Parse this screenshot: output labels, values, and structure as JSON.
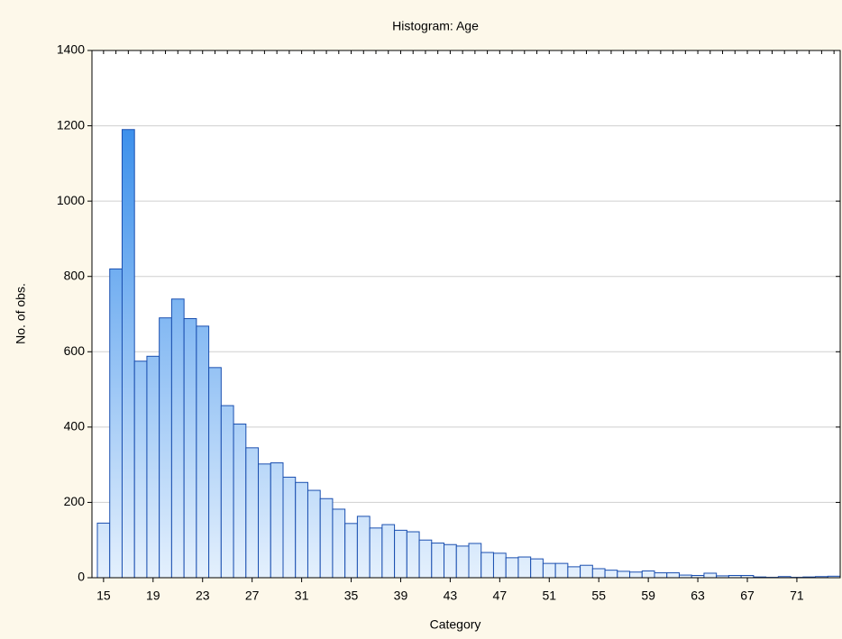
{
  "chart_data": {
    "type": "bar",
    "title": "Histogram: Age",
    "x_label": "Category",
    "y_label": "No. of obs.",
    "categories": [
      "15",
      null,
      null,
      null,
      "19",
      null,
      null,
      null,
      "23",
      null,
      null,
      null,
      "27",
      null,
      null,
      null,
      "31",
      null,
      null,
      null,
      "35",
      null,
      null,
      null,
      "39",
      null,
      null,
      null,
      "43",
      null,
      null,
      null,
      "47",
      null,
      null,
      null,
      "51",
      null,
      null,
      null,
      "55",
      null,
      null,
      null,
      "59",
      null,
      null,
      null,
      "63",
      null,
      null,
      null,
      "67",
      null,
      null,
      null,
      "71",
      null,
      null,
      null
    ],
    "values": [
      145,
      820,
      1190,
      575,
      588,
      690,
      740,
      688,
      668,
      558,
      457,
      408,
      345,
      302,
      305,
      267,
      253,
      232,
      210,
      182,
      144,
      163,
      132,
      141,
      126,
      122,
      100,
      92,
      88,
      84,
      91,
      67,
      65,
      53,
      55,
      50,
      38,
      38,
      29,
      33,
      24,
      20,
      17,
      15,
      18,
      13,
      13,
      7,
      6,
      12,
      5,
      6,
      6,
      2,
      1,
      3,
      1,
      2,
      3,
      4
    ],
    "color": "#1f7fe8",
    "ylim": [
      0,
      1400
    ],
    "yticks": [
      0,
      200,
      400,
      600,
      800,
      1000,
      1200,
      1400
    ],
    "grid": true
  }
}
